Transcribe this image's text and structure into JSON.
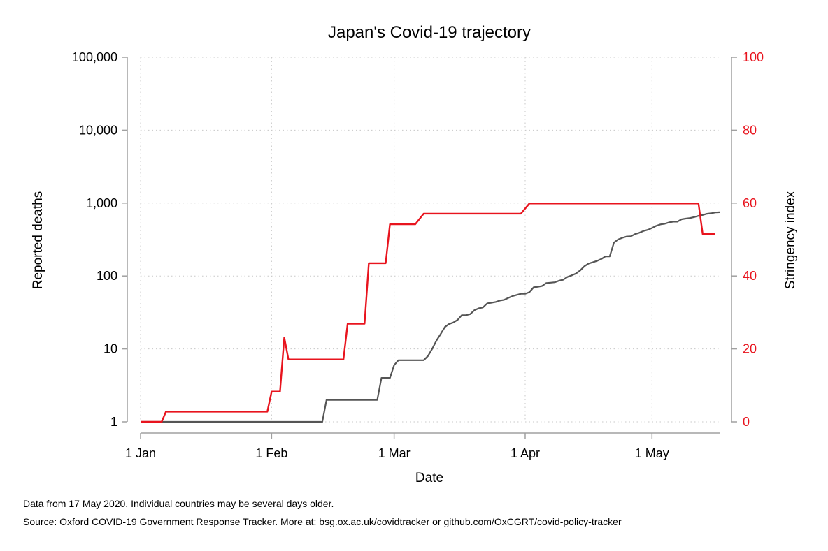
{
  "chart_data": {
    "type": "line",
    "title": "Japan's Covid-19 trajectory",
    "xlabel": "Date",
    "ylabel_left": "Reported deaths",
    "ylabel_right": "Stringency index",
    "x_domain": [
      "2020-01-01",
      "2020-05-17"
    ],
    "x_ticks": [
      {
        "date": "2020-01-01",
        "label": "1 Jan"
      },
      {
        "date": "2020-02-01",
        "label": "1 Feb"
      },
      {
        "date": "2020-03-01",
        "label": "1 Mar"
      },
      {
        "date": "2020-04-01",
        "label": "1 Apr"
      },
      {
        "date": "2020-05-01",
        "label": "1 May"
      }
    ],
    "y_left": {
      "scale": "log",
      "range": [
        1,
        100000
      ],
      "ticks": [
        {
          "value": 1,
          "label": "1"
        },
        {
          "value": 10,
          "label": "10"
        },
        {
          "value": 100,
          "label": "100"
        },
        {
          "value": 1000,
          "label": "1,000"
        },
        {
          "value": 10000,
          "label": "10,000"
        },
        {
          "value": 100000,
          "label": "100,000"
        }
      ]
    },
    "y_right": {
      "scale": "linear",
      "range": [
        0,
        100
      ],
      "ticks": [
        {
          "value": 0,
          "label": "0"
        },
        {
          "value": 20,
          "label": "20"
        },
        {
          "value": 40,
          "label": "40"
        },
        {
          "value": 60,
          "label": "60"
        },
        {
          "value": 80,
          "label": "80"
        },
        {
          "value": 100,
          "label": "100"
        }
      ]
    },
    "grid": true,
    "series": [
      {
        "axis": "left",
        "color": "#555555",
        "points": [
          [
            "2020-01-01",
            1
          ],
          [
            "2020-02-13",
            1
          ],
          [
            "2020-02-14",
            2
          ],
          [
            "2020-02-20",
            2
          ],
          [
            "2020-02-26",
            2
          ],
          [
            "2020-02-27",
            4
          ],
          [
            "2020-02-29",
            4
          ],
          [
            "2020-03-01",
            6
          ],
          [
            "2020-03-02",
            7
          ],
          [
            "2020-03-05",
            7
          ],
          [
            "2020-03-08",
            7
          ],
          [
            "2020-03-09",
            8
          ],
          [
            "2020-03-10",
            10
          ],
          [
            "2020-03-11",
            13
          ],
          [
            "2020-03-12",
            16
          ],
          [
            "2020-03-13",
            20
          ],
          [
            "2020-03-14",
            22
          ],
          [
            "2020-03-15",
            23
          ],
          [
            "2020-03-16",
            25
          ],
          [
            "2020-03-17",
            29
          ],
          [
            "2020-03-18",
            29
          ],
          [
            "2020-03-19",
            30
          ],
          [
            "2020-03-20",
            34
          ],
          [
            "2020-03-21",
            36
          ],
          [
            "2020-03-22",
            37
          ],
          [
            "2020-03-23",
            42
          ],
          [
            "2020-03-24",
            43
          ],
          [
            "2020-03-25",
            44
          ],
          [
            "2020-03-26",
            46
          ],
          [
            "2020-03-27",
            47
          ],
          [
            "2020-03-28",
            50
          ],
          [
            "2020-03-29",
            53
          ],
          [
            "2020-03-30",
            55
          ],
          [
            "2020-03-31",
            57
          ],
          [
            "2020-04-01",
            57
          ],
          [
            "2020-04-02",
            60
          ],
          [
            "2020-04-03",
            70
          ],
          [
            "2020-04-04",
            71
          ],
          [
            "2020-04-05",
            73
          ],
          [
            "2020-04-06",
            80
          ],
          [
            "2020-04-07",
            81
          ],
          [
            "2020-04-08",
            82
          ],
          [
            "2020-04-09",
            86
          ],
          [
            "2020-04-10",
            89
          ],
          [
            "2020-04-11",
            97
          ],
          [
            "2020-04-12",
            102
          ],
          [
            "2020-04-13",
            108
          ],
          [
            "2020-04-14",
            119
          ],
          [
            "2020-04-15",
            136
          ],
          [
            "2020-04-16",
            148
          ],
          [
            "2020-04-17",
            154
          ],
          [
            "2020-04-18",
            161
          ],
          [
            "2020-04-19",
            171
          ],
          [
            "2020-04-20",
            186
          ],
          [
            "2020-04-21",
            186
          ],
          [
            "2020-04-22",
            287
          ],
          [
            "2020-04-23",
            317
          ],
          [
            "2020-04-24",
            334
          ],
          [
            "2020-04-25",
            348
          ],
          [
            "2020-04-26",
            351
          ],
          [
            "2020-04-27",
            376
          ],
          [
            "2020-04-28",
            392
          ],
          [
            "2020-04-29",
            415
          ],
          [
            "2020-04-30",
            430
          ],
          [
            "2020-05-01",
            455
          ],
          [
            "2020-05-02",
            487
          ],
          [
            "2020-05-03",
            510
          ],
          [
            "2020-05-04",
            521
          ],
          [
            "2020-05-05",
            543
          ],
          [
            "2020-05-06",
            556
          ],
          [
            "2020-05-07",
            556
          ],
          [
            "2020-05-08",
            600
          ],
          [
            "2020-05-09",
            613
          ],
          [
            "2020-05-10",
            624
          ],
          [
            "2020-05-11",
            643
          ],
          [
            "2020-05-12",
            668
          ],
          [
            "2020-05-13",
            687
          ],
          [
            "2020-05-14",
            713
          ],
          [
            "2020-05-15",
            725
          ],
          [
            "2020-05-16",
            744
          ],
          [
            "2020-05-17",
            749
          ]
        ]
      },
      {
        "axis": "right",
        "color": "#e8141e",
        "points": [
          [
            "2020-01-01",
            0
          ],
          [
            "2020-01-06",
            0
          ],
          [
            "2020-01-07",
            2.8
          ],
          [
            "2020-01-31",
            2.8
          ],
          [
            "2020-02-01",
            8.3
          ],
          [
            "2020-02-03",
            8.3
          ],
          [
            "2020-02-04",
            23.1
          ],
          [
            "2020-02-05",
            17.1
          ],
          [
            "2020-02-18",
            17.1
          ],
          [
            "2020-02-19",
            26.9
          ],
          [
            "2020-02-23",
            26.9
          ],
          [
            "2020-02-24",
            43.5
          ],
          [
            "2020-02-28",
            43.5
          ],
          [
            "2020-02-29",
            54.2
          ],
          [
            "2020-03-06",
            54.2
          ],
          [
            "2020-03-08",
            57.1
          ],
          [
            "2020-03-31",
            57.1
          ],
          [
            "2020-04-02",
            59.9
          ],
          [
            "2020-05-12",
            59.9
          ],
          [
            "2020-05-13",
            51.5
          ],
          [
            "2020-05-16",
            51.5
          ]
        ]
      }
    ]
  },
  "notes": {
    "line1": "Data from 17 May 2020. Individual countries may be several days older.",
    "line2": "Source: Oxford COVID-19 Government Response Tracker. More at: bsg.ox.ac.uk/covidtracker or github.com/OxCGRT/covid-policy-tracker"
  }
}
